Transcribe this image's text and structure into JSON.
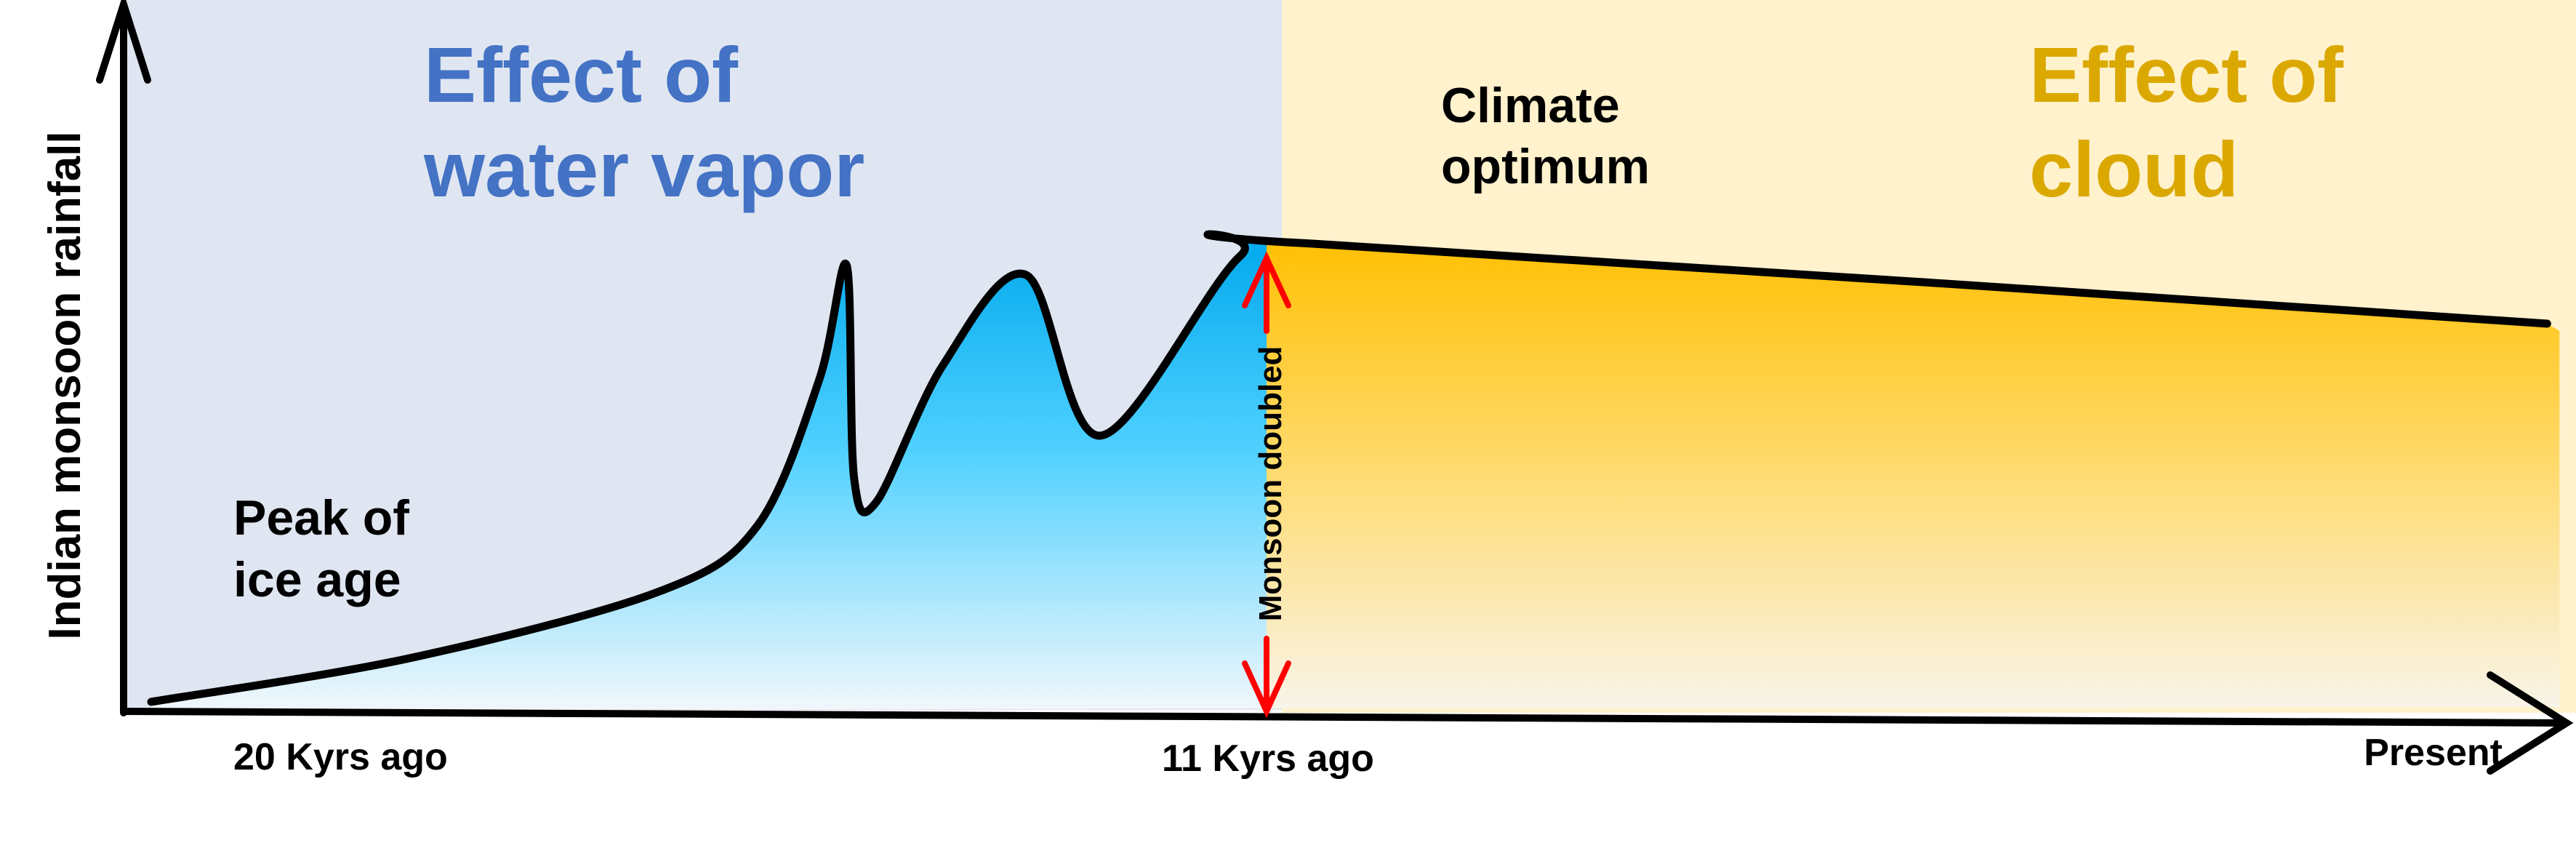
{
  "chart_data": {
    "type": "area",
    "title": "",
    "xlabel": "",
    "ylabel": "Indian monsoon rainfall",
    "x_unit": "thousand years ago",
    "x_ticks": [
      {
        "value": 20,
        "label": "20 Kyrs ago"
      },
      {
        "value": 11,
        "label": "11 Kyrs ago"
      },
      {
        "value": 0,
        "label": "Present"
      }
    ],
    "ylim": [
      0,
      100
    ],
    "y_note": "relative units (schematic, no numeric ticks)",
    "series": [
      {
        "name": "Indian monsoon rainfall",
        "points": [
          [
            20,
            1.7
          ],
          [
            17.9,
            11
          ],
          [
            15.9,
            25
          ],
          [
            15.1,
            39
          ],
          [
            14.6,
            70
          ],
          [
            14.38,
            94
          ],
          [
            14.32,
            49
          ],
          [
            14.14,
            44
          ],
          [
            13.6,
            73
          ],
          [
            12.93,
            92
          ],
          [
            12.33,
            58
          ],
          [
            11.2,
            96
          ],
          [
            10.58,
            98.6
          ],
          [
            0,
            81.7
          ]
        ]
      }
    ],
    "regions": [
      {
        "label_line1": "Effect of",
        "label_line2": "water vapor",
        "from": 20.8,
        "to": 11,
        "color": "#4472c4",
        "background": "#dfe6f2"
      },
      {
        "label_line1": "Effect of",
        "label_line2": "cloud",
        "from": 11,
        "to": 0,
        "color": "#dba800",
        "background": "#fff2cc"
      }
    ],
    "annotations": {
      "ice_age_line1": "Peak of",
      "ice_age_line2": "ice age",
      "optimum_line1": "Climate",
      "optimum_line2": "optimum",
      "doubled": "Monsoon doubled"
    },
    "colors": {
      "arrow": "#ff0000",
      "blue_fill": "#00aeef",
      "yellow_fill": "#ffc000"
    }
  }
}
